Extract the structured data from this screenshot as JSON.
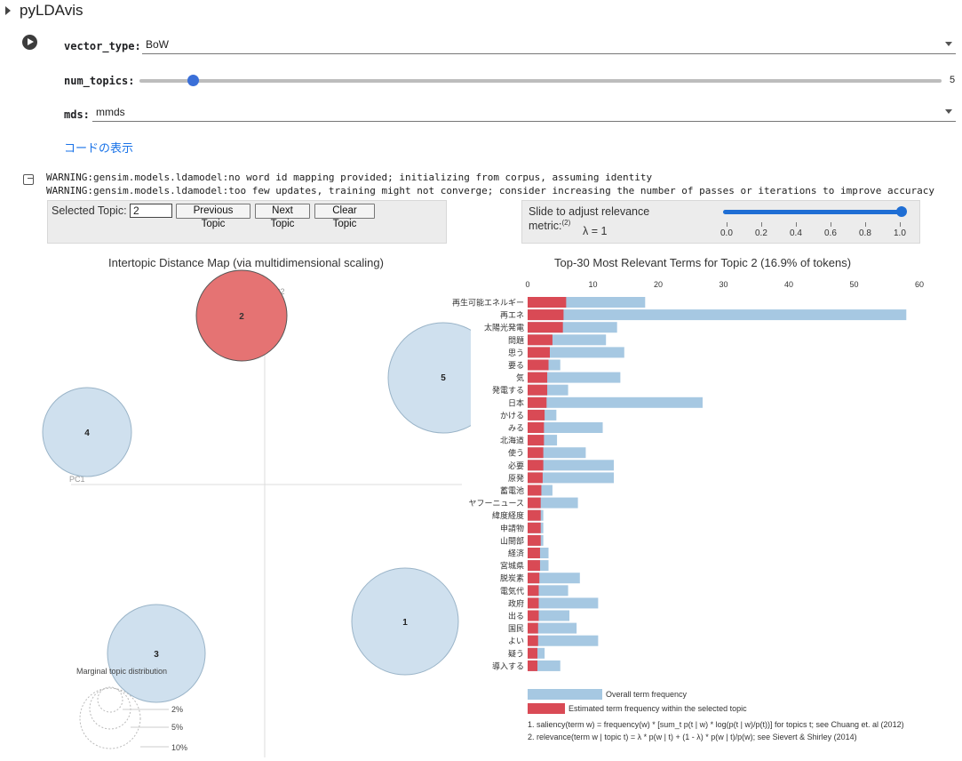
{
  "header": {
    "title": "pyLDAvis",
    "collapse_icon": "caret-right-icon"
  },
  "form": {
    "run_icon": "play-circle-icon",
    "vector_type": {
      "label": "vector_type:",
      "value": "BoW"
    },
    "num_topics": {
      "label": "num_topics:",
      "value": 5,
      "min": 1,
      "max": 60,
      "display": "5"
    },
    "mds": {
      "label": "mds:",
      "value": "mmds"
    },
    "show_code": "コードの表示"
  },
  "output": {
    "icon": "output-arrow-icon",
    "warnings": [
      "WARNING:gensim.models.ldamodel:no word id mapping provided; initializing from corpus, assuming identity",
      "WARNING:gensim.models.ldamodel:too few updates, training might not converge; consider increasing the number of passes or iterations to improve accuracy"
    ]
  },
  "controls": {
    "selected_topic_label": "Selected Topic:",
    "selected_topic_value": "2",
    "previous": "Previous Topic",
    "next": "Next Topic",
    "clear": "Clear Topic",
    "relevance_label_1": "Slide to adjust relevance",
    "relevance_label_2": "metric:",
    "relevance_sup": "(2)",
    "lambda_text": "λ = 1",
    "lambda_value": 1,
    "lambda_ticks": [
      "0.0",
      "0.2",
      "0.4",
      "0.6",
      "0.8",
      "1.0"
    ]
  },
  "map": {
    "title": "Intertopic Distance Map (via multidimensional scaling)",
    "pc1": "PC1",
    "pc2": "PC2",
    "marginal_title": "Marginal topic distribution",
    "marginal_labels": [
      "2%",
      "5%",
      "10%"
    ],
    "colors": {
      "selected": "#e57373",
      "default": "#cfe0ee",
      "stroke": "#9ab4c8"
    }
  },
  "chart_data": {
    "type": "bar",
    "title": "Top-30 Most Relevant Terms for Topic 2 (16.9% of tokens)",
    "xlim": [
      0,
      60
    ],
    "x_ticks": [
      0,
      10,
      20,
      30,
      40,
      50,
      60
    ],
    "categories": [
      "再生可能エネルギー",
      "再エネ",
      "太陽光発電",
      "問題",
      "思う",
      "要る",
      "気",
      "発電する",
      "日本",
      "かける",
      "みる",
      "北海道",
      "使う",
      "必要",
      "原発",
      "蓄電池",
      "ヤフーニュース",
      "緯度経度",
      "申請物",
      "山間部",
      "経済",
      "宮城県",
      "脱炭素",
      "電気代",
      "政府",
      "出る",
      "国民",
      "よい",
      "疑う",
      "導入する"
    ],
    "series": [
      {
        "name": "Overall term frequency",
        "color": "#a6c8e2",
        "values": [
          18,
          58,
          13.7,
          12,
          14.8,
          5,
          14.2,
          6.2,
          26.8,
          4.4,
          11.5,
          4.5,
          8.9,
          13.2,
          13.2,
          3.8,
          7.7,
          2.4,
          2.4,
          2.4,
          3.2,
          3.2,
          8,
          6.2,
          10.8,
          6.4,
          7.5,
          10.8,
          2.6,
          5
        ],
        "base_zero": true
      },
      {
        "name": "Estimated term frequency within the selected topic",
        "color": "#d94a55",
        "values": [
          5.9,
          5.5,
          5.4,
          3.8,
          3.4,
          3.2,
          3.0,
          3.0,
          2.9,
          2.6,
          2.5,
          2.5,
          2.4,
          2.4,
          2.3,
          2.1,
          2.0,
          2.0,
          2.0,
          2.0,
          1.9,
          1.9,
          1.8,
          1.7,
          1.7,
          1.7,
          1.6,
          1.6,
          1.5,
          1.5
        ]
      }
    ],
    "legend": [
      "Overall term frequency",
      "Estimated term frequency within the selected topic"
    ],
    "footnotes": [
      "1. saliency(term w) = frequency(w) * [sum_t p(t | w) * log(p(t | w)/p(t))] for topics t; see Chuang et. al (2012)",
      "2. relevance(term w | topic t) = λ * p(w | t) + (1 - λ) * p(w | t)/p(w); see Sievert & Shirley (2014)"
    ],
    "topics": [
      {
        "id": "1",
        "selected": false
      },
      {
        "id": "2",
        "selected": true
      },
      {
        "id": "3",
        "selected": false
      },
      {
        "id": "4",
        "selected": false
      },
      {
        "id": "5",
        "selected": false
      }
    ]
  }
}
